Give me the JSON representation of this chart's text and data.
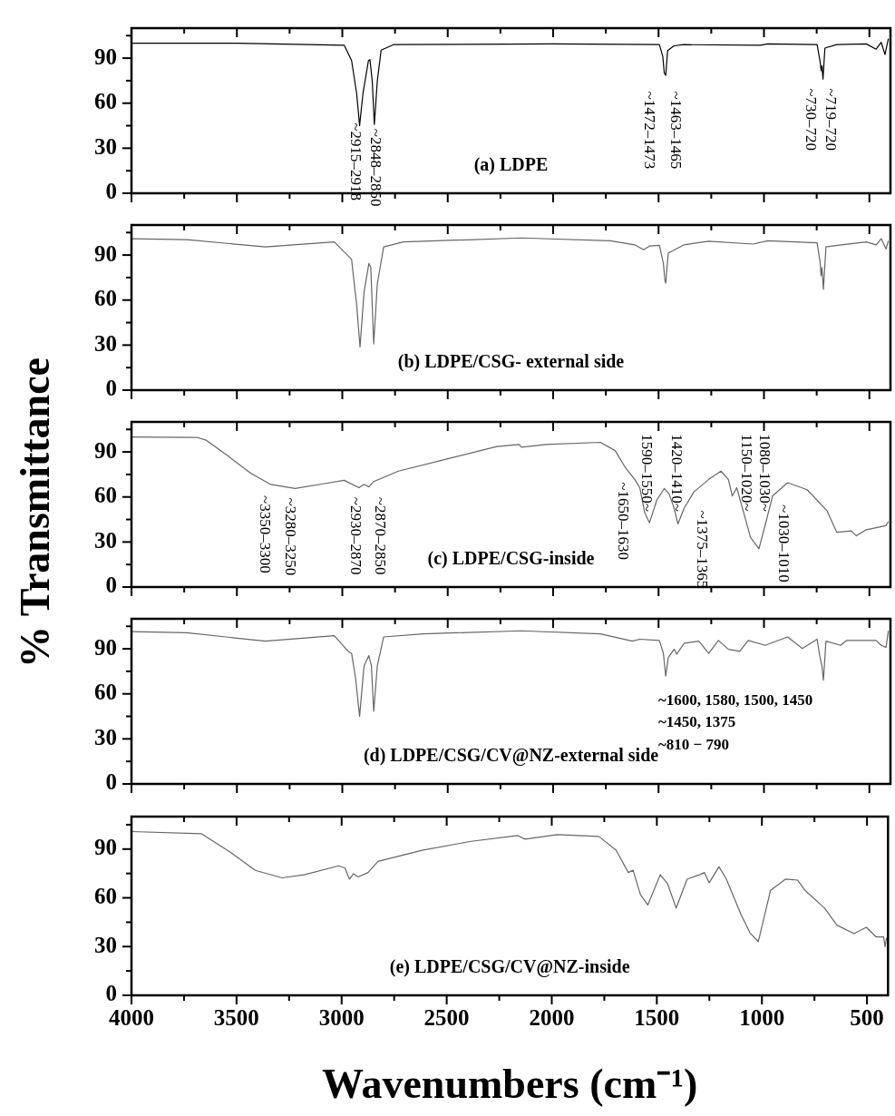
{
  "chart_data": [
    {
      "type": "line",
      "title": "(a) LDPE",
      "color": "#000000",
      "marker": "none",
      "tick_labels": "y",
      "xlim": [
        4000,
        400
      ],
      "ylim": [
        0,
        110
      ],
      "xticks": [
        4000,
        {
          "value": 3750,
          "label": null
        },
        3500,
        {
          "value": 3250,
          "label": null
        },
        3000,
        {
          "value": 2750,
          "label": null
        },
        2500,
        {
          "value": 2250,
          "label": null
        },
        2000,
        {
          "value": 1750,
          "label": null
        },
        1500,
        {
          "value": 1250,
          "label": null
        },
        1000,
        {
          "value": 750,
          "label": null
        },
        500
      ],
      "yticks": [
        0,
        {
          "value": 15,
          "label": null
        },
        30,
        {
          "value": 45,
          "label": null
        },
        60,
        {
          "value": 75,
          "label": null
        },
        90,
        {
          "value": 105,
          "label": null
        }
      ],
      "x": [
        4000,
        3500,
        2991,
        2956,
        2932,
        2918,
        2902,
        2876,
        2869,
        2858,
        2848,
        2834,
        2816,
        2757,
        2000,
        1496,
        1480,
        1473,
        1466,
        1457,
        1427,
        1380,
        1017,
        983,
        748,
        734,
        729,
        725,
        720,
        711,
        655,
        515,
        468,
        444,
        426,
        410
      ],
      "values": [
        100,
        100,
        98.6,
        88.4,
        66.5,
        45.1,
        66.5,
        88.4,
        89,
        74.7,
        45.8,
        74.7,
        95.3,
        99,
        99.5,
        99,
        91.2,
        80.2,
        78.5,
        95,
        98.2,
        99,
        98.6,
        99.5,
        99,
        88,
        81.6,
        85,
        76,
        96.7,
        99,
        99.5,
        96,
        100.5,
        92.4,
        103
      ],
      "annotations": [
        "~2915–2918",
        "~2848–2850",
        "~1472–1473",
        "~1463–1465",
        "~730–720",
        "~719–720"
      ]
    },
    {
      "type": "line",
      "title": "(b) LDPE/CSG- external side",
      "color": "#666666",
      "marker": "none",
      "tick_labels": "y",
      "xlim": [
        4000,
        400
      ],
      "ylim": [
        0,
        110
      ],
      "xticks": [
        4000,
        {
          "value": 3750,
          "label": null
        },
        3500,
        {
          "value": 3250,
          "label": null
        },
        3000,
        {
          "value": 2750,
          "label": null
        },
        2500,
        {
          "value": 2250,
          "label": null
        },
        2000,
        {
          "value": 1750,
          "label": null
        },
        1500,
        {
          "value": 1250,
          "label": null
        },
        1000,
        {
          "value": 750,
          "label": null
        },
        500
      ],
      "yticks": [
        0,
        {
          "value": 15,
          "label": null
        },
        30,
        {
          "value": 45,
          "label": null
        },
        60,
        {
          "value": 75,
          "label": null
        },
        90,
        {
          "value": 105,
          "label": null
        }
      ],
      "x": [
        4000,
        3738,
        3365,
        3038,
        2956,
        2932,
        2916,
        2897,
        2874,
        2865,
        2851,
        2834,
        2804,
        2711,
        2150,
        1729,
        1613,
        1571,
        1543,
        1496,
        1477,
        1470,
        1466,
        1454,
        1379,
        1262,
        1052,
        982,
        748,
        734,
        729,
        725,
        718,
        706,
        632,
        515,
        468,
        444,
        421,
        410
      ],
      "values": [
        100.9,
        100.3,
        95.4,
        98.7,
        87.1,
        56.8,
        28.7,
        65.2,
        84.4,
        81.7,
        30.8,
        70.7,
        95.4,
        98.7,
        101.4,
        99.5,
        96.8,
        93.5,
        96,
        96.5,
        84.4,
        73.4,
        71.2,
        91.3,
        96.8,
        99.2,
        97.3,
        99.5,
        98.1,
        85.7,
        76.2,
        81.7,
        67.2,
        95.4,
        96.8,
        98.7,
        96.8,
        100.9,
        94,
        99.5
      ]
    },
    {
      "type": "line",
      "title": "(c) LDPE/CSG-inside",
      "ylabel": "% Transmittance",
      "color": "#666666",
      "marker": "none",
      "tick_labels": "y",
      "xlim": [
        4000,
        400
      ],
      "ylim": [
        0,
        110
      ],
      "xticks": [
        4000,
        {
          "value": 3750,
          "label": null
        },
        3500,
        {
          "value": 3250,
          "label": null
        },
        3000,
        {
          "value": 2750,
          "label": null
        },
        2500,
        {
          "value": 2250,
          "label": null
        },
        2000,
        {
          "value": 1750,
          "label": null
        },
        1500,
        {
          "value": 1250,
          "label": null
        },
        1000,
        {
          "value": 750,
          "label": null
        },
        500
      ],
      "yticks": [
        0,
        {
          "value": 15,
          "label": null
        },
        30,
        {
          "value": 45,
          "label": null
        },
        60,
        {
          "value": 75,
          "label": null
        },
        90,
        {
          "value": 105,
          "label": null
        }
      ],
      "x": [
        4000,
        3692,
        3645,
        3551,
        3435,
        3341,
        3224,
        3084,
        2991,
        2921,
        2897,
        2874,
        2851,
        2734,
        2500,
        2267,
        2162,
        2150,
        2033,
        1776,
        1706,
        1659,
        1613,
        1589,
        1566,
        1543,
        1508,
        1473,
        1450,
        1426,
        1408,
        1379,
        1332,
        1262,
        1204,
        1169,
        1150,
        1129,
        1099,
        1064,
        1024,
        994,
        959,
        888,
        795,
        702,
        655,
        585,
        562,
        515,
        421,
        410
      ],
      "values": [
        100,
        99.7,
        97.8,
        88.2,
        75.8,
        68.4,
        65.6,
        68.9,
        71.1,
        66.2,
        68.4,
        66.7,
        70.3,
        77.2,
        85.4,
        93.6,
        95,
        93.1,
        95,
        96.4,
        90.9,
        79.9,
        71.7,
        66.2,
        49.7,
        42.8,
        58,
        65.6,
        62,
        52.4,
        42,
        52.4,
        63.4,
        71.7,
        77.2,
        71.7,
        60.7,
        66.2,
        51,
        33.2,
        25.5,
        41.4,
        60.7,
        69.5,
        64.8,
        51,
        36.5,
        37.4,
        34.1,
        38.2,
        40.9,
        43.7
      ],
      "annotations": [
        "~3350–3300",
        "~3280–3250",
        "~2930–2870",
        "~2870–2850",
        "~1650–1630",
        "1590–1550~",
        "1420–1410~",
        "~1375–1365",
        "1150–1020~",
        "1080–1030~",
        "~1030–1010"
      ]
    },
    {
      "type": "line",
      "title": "(d) LDPE/CSG/CV@NZ-external side",
      "color": "#666666",
      "marker": "none",
      "tick_labels": "y",
      "xlim": [
        4000,
        400
      ],
      "ylim": [
        0,
        110
      ],
      "xticks": [
        4000,
        {
          "value": 3750,
          "label": null
        },
        3500,
        {
          "value": 3250,
          "label": null
        },
        3000,
        {
          "value": 2750,
          "label": null
        },
        2500,
        {
          "value": 2250,
          "label": null
        },
        2000,
        {
          "value": 1750,
          "label": null
        },
        1500,
        {
          "value": 1250,
          "label": null
        },
        1000,
        {
          "value": 750,
          "label": null
        },
        500
      ],
      "yticks": [
        0,
        {
          "value": 15,
          "label": null
        },
        30,
        {
          "value": 45,
          "label": null
        },
        60,
        {
          "value": 75,
          "label": null
        },
        90,
        {
          "value": 105,
          "label": null
        }
      ],
      "x": [
        4000,
        3738,
        3365,
        3038,
        2972,
        2956,
        2937,
        2918,
        2897,
        2874,
        2862,
        2851,
        2834,
        2804,
        2617,
        2150,
        1776,
        1624,
        1589,
        1496,
        1477,
        1466,
        1454,
        1426,
        1414,
        1379,
        1309,
        1262,
        1216,
        1169,
        1115,
        1075,
        994,
        888,
        818,
        748,
        734,
        725,
        718,
        706,
        636,
        608,
        468,
        444,
        421,
        410
      ],
      "values": [
        101.5,
        100.7,
        95.1,
        98.7,
        88.3,
        86.9,
        70.4,
        45.1,
        78.6,
        85.5,
        78.6,
        48.4,
        78.6,
        97.9,
        100,
        102,
        100,
        95.1,
        96.4,
        95.6,
        86.9,
        71.8,
        84.2,
        89.7,
        86.4,
        93.7,
        95.1,
        86.9,
        95.6,
        89.7,
        88.3,
        95.6,
        92.3,
        97.9,
        90.2,
        96.4,
        84.2,
        78.6,
        69.1,
        95.1,
        92.3,
        95.6,
        95.6,
        92.3,
        90.9,
        101.9
      ],
      "annotations": [
        "~1600, 1580, 1500, 1450",
        "~1450, 1375",
        "~810 − 790"
      ]
    },
    {
      "type": "line",
      "title": "(e) LDPE/CSG/CV@NZ-inside",
      "xlabel": "Wavenumbers (cm⁻¹)",
      "color": "#666666",
      "marker": "none",
      "xlim": [
        4000,
        400
      ],
      "ylim": [
        0,
        110
      ],
      "xticks": [
        4000,
        {
          "value": 3750,
          "label": null
        },
        3500,
        {
          "value": 3250,
          "label": null
        },
        3000,
        {
          "value": 2750,
          "label": null
        },
        2500,
        {
          "value": 2250,
          "label": null
        },
        2000,
        {
          "value": 1750,
          "label": null
        },
        1500,
        {
          "value": 1250,
          "label": null
        },
        1000,
        {
          "value": 750,
          "label": null
        },
        500
      ],
      "yticks": [
        0,
        {
          "value": 15,
          "label": null
        },
        30,
        {
          "value": 45,
          "label": null
        },
        60,
        {
          "value": 75,
          "label": null
        },
        90,
        {
          "value": 105,
          "label": null
        }
      ],
      "x": [
        4000,
        3668,
        3528,
        3411,
        3283,
        3178,
        3014,
        2984,
        2963,
        2944,
        2921,
        2874,
        2827,
        2617,
        2383,
        2162,
        2127,
        1975,
        1776,
        1694,
        1636,
        1613,
        1578,
        1543,
        1484,
        1449,
        1408,
        1356,
        1297,
        1274,
        1251,
        1204,
        1169,
        1099,
        1057,
        1017,
        959,
        888,
        830,
        795,
        702,
        643,
        562,
        503,
        456,
        421,
        414,
        407
      ],
      "values": [
        100.8,
        99.5,
        87.9,
        76.9,
        72.3,
        74.2,
        79.7,
        78.3,
        71.5,
        74.8,
        72.9,
        75.6,
        82.4,
        89.3,
        94.8,
        98.3,
        96.1,
        98.9,
        97.8,
        89.3,
        75.6,
        77,
        61.9,
        55.6,
        74.2,
        68.7,
        53.7,
        71.5,
        74.2,
        75.6,
        69.3,
        79.1,
        71.5,
        49.6,
        38.5,
        33.1,
        64.6,
        71.5,
        70.9,
        64.6,
        53.7,
        43.2,
        38,
        41.9,
        35.9,
        35.9,
        29.9,
        35.4
      ]
    }
  ]
}
